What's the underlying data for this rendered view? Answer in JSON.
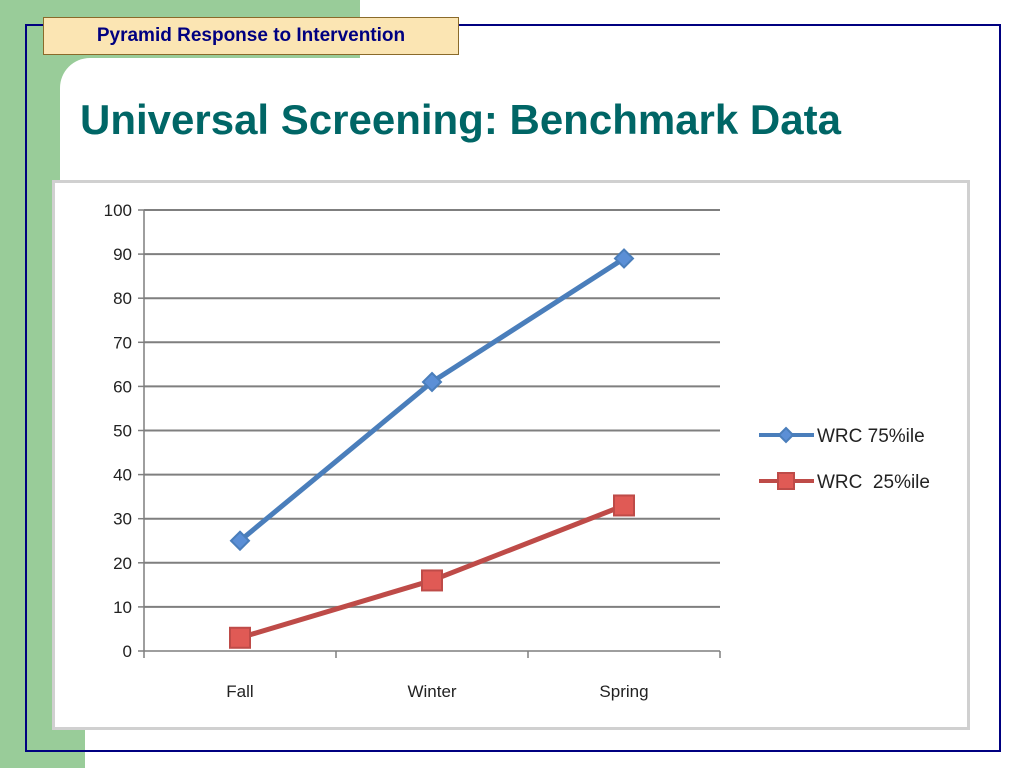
{
  "slide": {
    "header_label": "Pyramid Response to Intervention",
    "title": "Universal Screening: Benchmark Data"
  },
  "colors": {
    "accent_green": "#99cc99",
    "title_teal": "#006666",
    "frame_navy": "#000080",
    "header_fill": "#fbe5b3"
  },
  "chart_data": {
    "type": "line",
    "categories": [
      "Fall",
      "Winter",
      "Spring"
    ],
    "series": [
      {
        "name": "WRC 75%ile",
        "values": [
          25,
          61,
          89
        ],
        "color": "#4a7ebb",
        "marker": "diamond"
      },
      {
        "name": "WRC  25%ile",
        "values": [
          3,
          16,
          33
        ],
        "color": "#be4b48",
        "marker": "square"
      }
    ],
    "ylim": [
      0,
      100
    ],
    "yticks": [
      0,
      10,
      20,
      30,
      40,
      50,
      60,
      70,
      80,
      90,
      100
    ],
    "grid": true,
    "legend_position": "right",
    "title": "",
    "xlabel": "",
    "ylabel": ""
  }
}
